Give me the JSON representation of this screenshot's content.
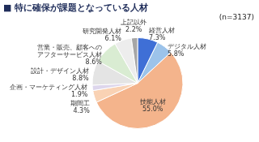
{
  "chart_data": {
    "type": "pie",
    "title": "■ 特に確保が課題となっている人材",
    "annotations": [
      "(n=3137)"
    ],
    "categories": [
      "経営人材",
      "デジタル人材",
      "技能人材",
      "期間工",
      "企画・マーケティング人材",
      "設計・デザイン人材",
      "営業・販売、顧客へのアフターサービス人材",
      "研究開発人材",
      "上記以外"
    ],
    "values": [
      7.3,
      5.8,
      55.0,
      4.3,
      1.9,
      8.8,
      8.6,
      6.1,
      2.2
    ],
    "value_labels": [
      "7.3%",
      "5.8%",
      "55.0%",
      "4.3%",
      "1.9%",
      "8.8%",
      "8.6%",
      "6.1%",
      "2.2%"
    ],
    "colors": [
      "#3f6fd6",
      "#9cc3ea",
      "#f4b48c",
      "#f9d2b4",
      "#ddd6ec",
      "#e4e4e4",
      "#d9ecd2",
      "#ededed",
      "#a6a6a6"
    ],
    "data_labels": true
  }
}
